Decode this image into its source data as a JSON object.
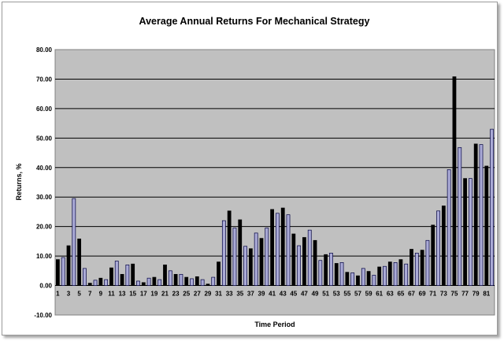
{
  "chart_data": {
    "type": "bar",
    "title": "Average Annual Returns For Mechanical Strategy",
    "xlabel": "Time Period",
    "ylabel": "Returns, %",
    "ylim": [
      -10,
      80
    ],
    "y_ticks": [
      "-10.00",
      "0.00",
      "10.00",
      "20.00",
      "30.00",
      "40.00",
      "50.00",
      "60.00",
      "70.00",
      "80.00"
    ],
    "x_tick_labels": [
      "1",
      "3",
      "5",
      "7",
      "9",
      "11",
      "13",
      "15",
      "17",
      "19",
      "21",
      "23",
      "25",
      "27",
      "29",
      "31",
      "33",
      "35",
      "37",
      "39",
      "41",
      "43",
      "45",
      "47",
      "49",
      "51",
      "53",
      "55",
      "57",
      "59",
      "61",
      "63",
      "65",
      "67",
      "69",
      "71",
      "73",
      "75",
      "77",
      "79",
      "81"
    ],
    "grid": true,
    "legend": "none",
    "colors": {
      "plot_background": "#c0c0c0",
      "bar_dark": "#000000",
      "bar_light": "#aaaad6",
      "bar_light_border": "#000040"
    },
    "categories": [
      1,
      2,
      3,
      4,
      5,
      6,
      7,
      8,
      9,
      10,
      11,
      12,
      13,
      14,
      15,
      16,
      17,
      18,
      19,
      20,
      21,
      22,
      23,
      24,
      25,
      26,
      27,
      28,
      29,
      30,
      31,
      32,
      33,
      34,
      35,
      36,
      37,
      38,
      39,
      40,
      41,
      42,
      43,
      44,
      45,
      46,
      47,
      48,
      49,
      50,
      51,
      52,
      53,
      54,
      55,
      56,
      57,
      58,
      59,
      60,
      61,
      62,
      63,
      64,
      65,
      66,
      67,
      68,
      69,
      70,
      71,
      72,
      73,
      74,
      75,
      76,
      77,
      78,
      79,
      80,
      81,
      82
    ],
    "values": [
      8.8,
      9.5,
      13.5,
      29.5,
      15.8,
      5.8,
      0.8,
      1.8,
      2.5,
      2.0,
      6.0,
      8.3,
      3.8,
      7.0,
      7.3,
      1.5,
      1.0,
      2.5,
      2.8,
      2.0,
      7.0,
      5.0,
      3.8,
      3.8,
      2.8,
      2.3,
      3.0,
      2.0,
      0.5,
      2.8,
      8.0,
      22.0,
      25.3,
      19.5,
      22.3,
      13.3,
      12.5,
      17.8,
      16.0,
      19.5,
      25.8,
      24.5,
      26.3,
      24.0,
      17.5,
      13.5,
      16.3,
      18.8,
      15.3,
      8.5,
      10.5,
      11.0,
      7.5,
      7.8,
      4.5,
      4.3,
      3.3,
      5.8,
      4.8,
      3.5,
      6.3,
      6.5,
      8.0,
      7.8,
      8.8,
      7.3,
      12.3,
      11.0,
      12.0,
      15.3,
      20.5,
      25.3,
      27.0,
      39.3,
      70.8,
      46.8,
      36.3,
      36.3,
      48.0,
      47.8,
      40.5,
      53.0
    ]
  }
}
